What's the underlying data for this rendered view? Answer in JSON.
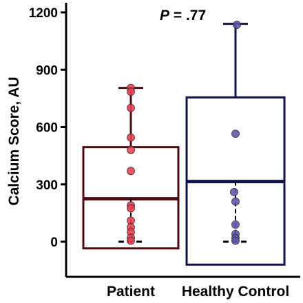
{
  "chart_data": {
    "type": "box",
    "title": "",
    "xlabel": "",
    "ylabel": "Calcium Score, AU",
    "ylim": [
      -175,
      1250
    ],
    "yticks": [
      0,
      300,
      600,
      900,
      1200
    ],
    "grid": false,
    "annotation": {
      "label": "P",
      "text": " = .77"
    },
    "categories": [
      "Patient",
      "Healthy Control"
    ],
    "series": [
      {
        "category": "Patient",
        "box": {
          "q1": -35,
          "median": 225,
          "q3": 495
        },
        "whisker": {
          "low": 0,
          "high": 805
        },
        "points": [
          805,
          785,
          700,
          545,
          480,
          370,
          190,
          175,
          110,
          75,
          50,
          20,
          5
        ],
        "box_color": "#4a0d10",
        "point_color": "#e8404d"
      },
      {
        "category": "Healthy Control",
        "box": {
          "q1": -120,
          "median": 315,
          "q3": 755
        },
        "whisker": {
          "low": 0,
          "high": 1140
        },
        "points": [
          1135,
          565,
          260,
          210,
          90,
          40,
          20,
          5
        ],
        "box_color": "#13124a",
        "point_color": "#5b56a8"
      }
    ]
  }
}
